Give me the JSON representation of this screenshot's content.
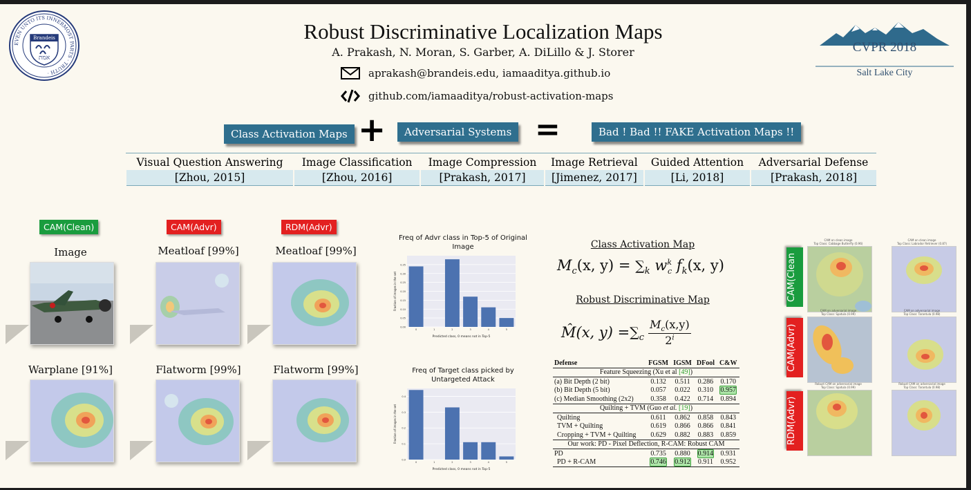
{
  "header": {
    "title": "Robust Discriminative Localization Maps",
    "authors": "A. Prakash, N. Moran, S. Garber, A. DiLillo & J. Storer",
    "email": "aprakash@brandeis.edu, iamaaditya.github.io",
    "github": "github.com/iamaaditya/robust-activation-maps",
    "seal": {
      "top_text": "TRUTH",
      "left_text": "EVEN UNTO ITS",
      "right_text": "PARTS",
      "bottom_text": "INNERMOST",
      "name": "Brandeis",
      "hebrew": "אמת"
    },
    "conference": {
      "name": "CVPR 2018",
      "location": "Salt Lake City"
    }
  },
  "equation_banner": {
    "term1": "Class Activation Maps",
    "plus": "+",
    "term2": "Adversarial Systems",
    "equals": "=",
    "result": "Bad ! Bad !!  FAKE Activation Maps !!"
  },
  "applications": {
    "headers": [
      "Visual Question Answering",
      "Image Classification",
      "Image Compression",
      "Image Retrieval",
      "Guided Attention",
      "Adversarial Defense"
    ],
    "citations": [
      "[Zhou, 2015]",
      "[Zhou, 2016]",
      "[Prakash, 2017]",
      "[Jimenez, 2017]",
      "[Li, 2018]",
      "[Prakash, 2018]"
    ]
  },
  "examples": {
    "tags": [
      {
        "label": "CAM(Clean)",
        "color": "#1a9c3e"
      },
      {
        "label": "CAM(Advr)",
        "color": "#e32020"
      },
      {
        "label": "RDM(Advr)",
        "color": "#e32020"
      }
    ],
    "row1_captions": [
      "Image",
      "Meatloaf [99%]",
      "Meatloaf [99%]"
    ],
    "row2_captions": [
      "Warplane [91%]",
      "Flatworm [99%]",
      "Flatworm [99%]"
    ]
  },
  "chart_data": [
    {
      "type": "bar",
      "title": "Freq of Advr class in Top-5 of Original Image",
      "xlabel": "Predicted class, 0 means not in Top-5",
      "ylabel": "Fraction of images in the set",
      "categories": [
        "0",
        "1",
        "2",
        "3",
        "4",
        "5"
      ],
      "values": [
        0.34,
        0,
        0.38,
        0.17,
        0.11,
        0.05
      ],
      "ylim": [
        0,
        0.4
      ],
      "yticks": [
        "0.00",
        "0.05",
        "0.10",
        "0.15",
        "0.20",
        "0.25",
        "0.30",
        "0.35"
      ],
      "grid": true,
      "bar_color": "#4c72b0"
    },
    {
      "type": "bar",
      "title": "Freq of Target class picked by Untargeted Attack",
      "xlabel": "Predicted class, 0 means not in Top-5",
      "ylabel": "Fraction of images in the set",
      "categories": [
        "0",
        "1",
        "2",
        "3",
        "4",
        "5"
      ],
      "values": [
        0.44,
        0,
        0.33,
        0.11,
        0.11,
        0.02
      ],
      "ylim": [
        0,
        0.45
      ],
      "yticks": [
        "0.0",
        "0.1",
        "0.2",
        "0.3",
        "0.4"
      ],
      "grid": true,
      "bar_color": "#4c72b0"
    }
  ],
  "equations": {
    "cam_heading": "Class Activation Map",
    "cam_lhs": "M",
    "cam_lhs_sub": "c",
    "cam_args": "(x, y) = ",
    "cam_sum": "∑",
    "cam_sum_sub": "k",
    "cam_w": " w",
    "cam_w_sup": "k",
    "cam_w_sub": "c",
    "cam_f": " f",
    "cam_f_sub": "k",
    "cam_f_args": "(x, y)",
    "rdm_heading": "Robust Discriminative Map",
    "rdm_lhs": "M̂(x, y) = ",
    "rdm_sum": "∑",
    "rdm_sum_sub": "c",
    "rdm_num": "M",
    "rdm_num_sub": "c",
    "rdm_num_args": "(x,y)",
    "rdm_den": "2",
    "rdm_den_sup": "i"
  },
  "defense_table": {
    "headers": [
      "Defense",
      "FGSM",
      "IGSM",
      "DFool",
      "C&W"
    ],
    "section1": {
      "pre": "Feature Squeezing (Xu et al ",
      "cite": "[49]",
      "post": ")"
    },
    "rows1": [
      {
        "name": "(a) Bit Depth (2 bit)",
        "vals": [
          "0.132",
          "0.511",
          "0.286",
          "0.170"
        ]
      },
      {
        "name": "(b) Bit Depth (5 bit)",
        "vals": [
          "0.057",
          "0.022",
          "0.310",
          "0.957"
        ]
      },
      {
        "name": "(c) Median Smoothing (2x2)",
        "vals": [
          "0.358",
          "0.422",
          "0.714",
          "0.894"
        ]
      }
    ],
    "section2": {
      "pre": "Quilting + TVM (Guo ",
      "em": "et al.",
      "mid": " ",
      "cite": "[19]",
      "post": ")"
    },
    "rows2": [
      {
        "name": "Quilting",
        "vals": [
          "0.611",
          "0.862",
          "0.858",
          "0.843"
        ]
      },
      {
        "name": "TVM + Quilting",
        "vals": [
          "0.619",
          "0.866",
          "0.866",
          "0.841"
        ]
      },
      {
        "name": "Cropping + TVM + Quilting",
        "vals": [
          "0.629",
          "0.882",
          "0.883",
          "0.859"
        ]
      }
    ],
    "section3": "Our work: PD - Pixel Deflection, R-CAM: Robust CAM",
    "rows3": [
      {
        "name": "PD",
        "vals": [
          "0.735",
          "0.880",
          "0.914",
          "0.931"
        ]
      },
      {
        "name": "PD + R-CAM",
        "vals": [
          "0.746",
          "0.912",
          "0.911",
          "0.952"
        ]
      }
    ],
    "highlighted": [
      "rows1.1.3",
      "rows3.0.2",
      "rows3.1.0",
      "rows3.1.1"
    ],
    "highlight_color": "#aee6a9"
  },
  "right_panel": {
    "tags": [
      {
        "label": "CAM(Clean",
        "color": "#1a9c3e"
      },
      {
        "label": "CAM(Advr)",
        "color": "#e32020"
      },
      {
        "label": "RDM(Advr)",
        "color": "#e32020"
      }
    ],
    "captions": [
      [
        "CAM on clean image",
        "Top Class: Cabbage Butterfly (0.96)"
      ],
      [
        "CAM on clean image",
        "Top Class: Labrador Retriever (0.87)"
      ],
      [
        "CAM on adversarial image",
        "Top Class: Spatula (0.99)"
      ],
      [
        "CAM on adversarial image",
        "Top Class: Tarantula (0.98)"
      ],
      [
        "Robust CAM on adversarial image",
        "Top Class: Spatula (0.99)"
      ],
      [
        "Robust CAM on adversarial image",
        "Top Class: Tarantula (0.98)"
      ]
    ]
  }
}
